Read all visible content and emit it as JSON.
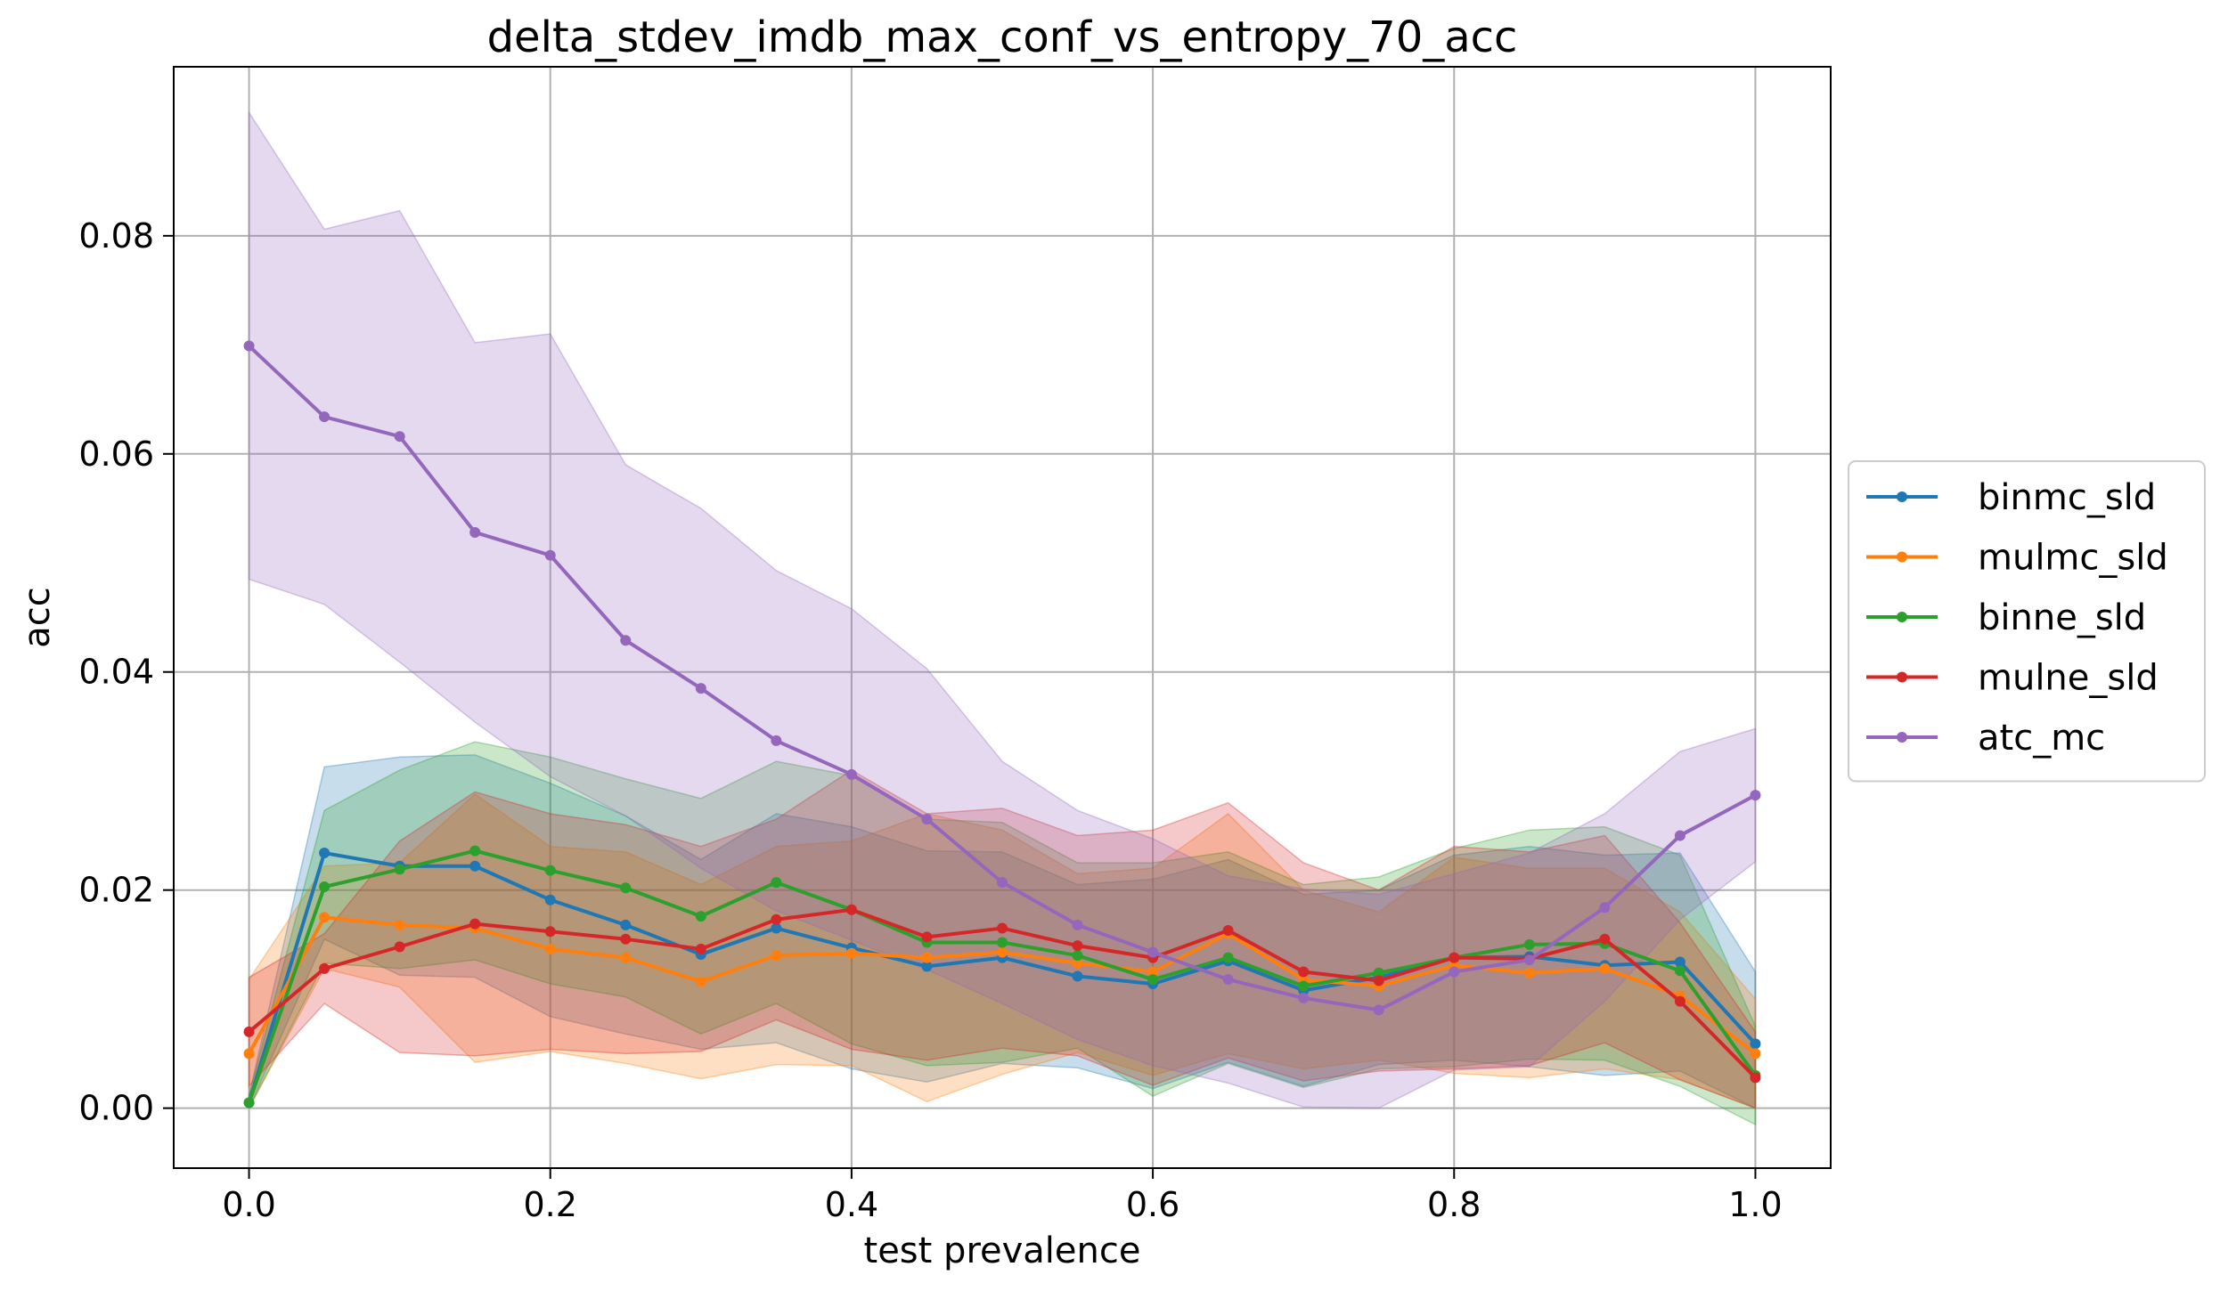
{
  "chart_data": {
    "type": "line",
    "title": "delta_stdev_imdb_max_conf_vs_entropy_70_acc",
    "xlabel": "test prevalence",
    "ylabel": "acc",
    "xlim": [
      -0.05,
      1.05
    ],
    "ylim": [
      -0.0055,
      0.0955
    ],
    "xticks": [
      0.0,
      0.2,
      0.4,
      0.6,
      0.8,
      1.0
    ],
    "xtick_labels": [
      "0.0",
      "0.2",
      "0.4",
      "0.6",
      "0.8",
      "1.0"
    ],
    "yticks": [
      0.0,
      0.02,
      0.04,
      0.06,
      0.08
    ],
    "ytick_labels": [
      "0.00",
      "0.02",
      "0.04",
      "0.06",
      "0.08"
    ],
    "grid": true,
    "legend_position": "center-right-outside",
    "x": [
      0.0,
      0.05,
      0.1,
      0.15,
      0.2,
      0.25,
      0.3,
      0.35,
      0.4,
      0.45,
      0.5,
      0.55,
      0.6,
      0.65,
      0.7,
      0.75,
      0.8,
      0.85,
      0.9,
      0.95,
      1.0
    ],
    "series": [
      {
        "name": "binmc_sld",
        "color": "#1f77b4",
        "values": [
          0.0005,
          0.0234,
          0.0222,
          0.0222,
          0.0191,
          0.0168,
          0.0141,
          0.0165,
          0.0147,
          0.013,
          0.0138,
          0.0121,
          0.0114,
          0.0135,
          0.0108,
          0.012,
          0.0138,
          0.0139,
          0.0131,
          0.0134,
          0.0059
        ],
        "upper": [
          0.0012,
          0.0313,
          0.0322,
          0.0324,
          0.0298,
          0.0268,
          0.0228,
          0.027,
          0.0258,
          0.0236,
          0.0235,
          0.0205,
          0.021,
          0.0228,
          0.0196,
          0.02,
          0.0232,
          0.024,
          0.0232,
          0.0234,
          0.0125
        ],
        "lower": [
          0.0,
          0.0155,
          0.0122,
          0.012,
          0.0084,
          0.0068,
          0.0054,
          0.006,
          0.0036,
          0.0024,
          0.0041,
          0.0037,
          0.0018,
          0.0042,
          0.002,
          0.004,
          0.0044,
          0.0038,
          0.003,
          0.0034,
          0.0
        ]
      },
      {
        "name": "mulmc_sld",
        "color": "#ff7f0e",
        "values": [
          0.005,
          0.0175,
          0.0168,
          0.0165,
          0.0146,
          0.0138,
          0.0116,
          0.014,
          0.0142,
          0.0138,
          0.0143,
          0.0133,
          0.0125,
          0.016,
          0.0118,
          0.0112,
          0.0131,
          0.0124,
          0.0128,
          0.0103,
          0.005
        ],
        "upper": [
          0.0118,
          0.0222,
          0.0225,
          0.0288,
          0.024,
          0.0235,
          0.0205,
          0.024,
          0.0245,
          0.027,
          0.0255,
          0.0215,
          0.022,
          0.027,
          0.02,
          0.018,
          0.023,
          0.022,
          0.022,
          0.018,
          0.01
        ],
        "lower": [
          0.0,
          0.0128,
          0.0111,
          0.0042,
          0.0052,
          0.0041,
          0.0027,
          0.004,
          0.0039,
          0.0006,
          0.0031,
          0.0051,
          0.003,
          0.005,
          0.0036,
          0.0044,
          0.0032,
          0.0028,
          0.0036,
          0.0026,
          0.0
        ]
      },
      {
        "name": "binne_sld",
        "color": "#2ca02c",
        "values": [
          0.0005,
          0.0203,
          0.0219,
          0.0236,
          0.0218,
          0.0202,
          0.0176,
          0.0207,
          0.0182,
          0.0152,
          0.0152,
          0.014,
          0.0118,
          0.0138,
          0.0112,
          0.0124,
          0.0138,
          0.015,
          0.0151,
          0.0126,
          0.003
        ],
        "upper": [
          0.0012,
          0.0273,
          0.031,
          0.0336,
          0.0322,
          0.0302,
          0.0284,
          0.0318,
          0.0305,
          0.0265,
          0.0262,
          0.0225,
          0.0225,
          0.0235,
          0.0205,
          0.0212,
          0.0238,
          0.0255,
          0.0258,
          0.0232,
          0.0075
        ],
        "lower": [
          0.0,
          0.0133,
          0.0128,
          0.0136,
          0.0114,
          0.0102,
          0.0068,
          0.0096,
          0.0059,
          0.0039,
          0.0042,
          0.0055,
          0.0011,
          0.0041,
          0.0019,
          0.0036,
          0.0038,
          0.0045,
          0.0044,
          0.002,
          -0.0015
        ]
      },
      {
        "name": "mulne_sld",
        "color": "#d62728",
        "values": [
          0.007,
          0.0128,
          0.0148,
          0.0169,
          0.0162,
          0.0155,
          0.0146,
          0.0173,
          0.0182,
          0.0157,
          0.0165,
          0.0149,
          0.0138,
          0.0163,
          0.0125,
          0.0117,
          0.0138,
          0.0137,
          0.0155,
          0.0098,
          0.0028
        ],
        "upper": [
          0.012,
          0.016,
          0.0245,
          0.029,
          0.027,
          0.026,
          0.024,
          0.0265,
          0.031,
          0.027,
          0.0275,
          0.025,
          0.0255,
          0.028,
          0.0225,
          0.02,
          0.024,
          0.0235,
          0.025,
          0.017,
          0.007
        ],
        "lower": [
          0.002,
          0.0096,
          0.0051,
          0.0048,
          0.0054,
          0.005,
          0.0052,
          0.0081,
          0.0054,
          0.0044,
          0.0055,
          0.0048,
          0.0021,
          0.0046,
          0.0025,
          0.0034,
          0.0036,
          0.0039,
          0.006,
          0.0026,
          0.0
        ]
      },
      {
        "name": "atc_mc",
        "color": "#9467bd",
        "values": [
          0.0699,
          0.0634,
          0.0616,
          0.0528,
          0.0507,
          0.0429,
          0.0385,
          0.0337,
          0.0306,
          0.0265,
          0.0207,
          0.0168,
          0.0143,
          0.0118,
          0.0101,
          0.009,
          0.0125,
          0.0136,
          0.0184,
          0.025,
          0.0287
        ],
        "upper": [
          0.0913,
          0.0806,
          0.0823,
          0.0702,
          0.071,
          0.059,
          0.055,
          0.0493,
          0.0458,
          0.0403,
          0.0318,
          0.0273,
          0.0247,
          0.0213,
          0.0201,
          0.0196,
          0.0215,
          0.0234,
          0.027,
          0.0327,
          0.0348
        ],
        "lower": [
          0.0485,
          0.0462,
          0.0409,
          0.0354,
          0.0304,
          0.0268,
          0.022,
          0.0181,
          0.0154,
          0.0127,
          0.0096,
          0.0063,
          0.0039,
          0.0023,
          0.0001,
          0.0,
          0.0035,
          0.0038,
          0.0098,
          0.0173,
          0.0226
        ]
      }
    ]
  }
}
